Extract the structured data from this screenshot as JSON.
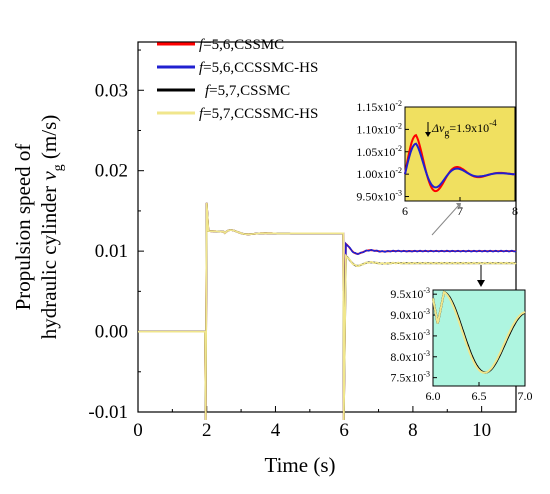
{
  "chart_data": {
    "type": "line",
    "xlabel": "Time (s)",
    "ylabel_line1": "Propulsion speed of",
    "ylabel_line2_main": "hydraulic cylinder ",
    "ylabel_line2_var": "v",
    "ylabel_line2_sub": "g",
    "ylabel_line2_unit": " (m/s)",
    "xlim": [
      0,
      11
    ],
    "ylim": [
      -0.01,
      0.036
    ],
    "x_ticks": [
      "0",
      "2",
      "4",
      "6",
      "8",
      "10"
    ],
    "y_ticks": [
      "-0.01",
      "0.00",
      "0.01",
      "0.02",
      "0.03"
    ],
    "legend": [
      {
        "var": "f",
        "label": "=5,6,CSSMC",
        "color": "#ff0000"
      },
      {
        "var": "f",
        "label": "=5,6,CCSSMC-HS",
        "color": "#2020d0"
      },
      {
        "var": "f",
        "label": "=5,7,CSSMC",
        "color": "#000000"
      },
      {
        "var": "f",
        "label": "=5,7,CCSSMC-HS",
        "color": "#f0e68c"
      }
    ],
    "series_note_levels": {
      "f56_steady": 0.01,
      "f57_steady": 0.0085,
      "stage2_steady": 0.0122,
      "initial": 0.0
    },
    "inset1": {
      "xlim": [
        6,
        8
      ],
      "ylim": [
        0.0094,
        0.0115
      ],
      "x_ticks": [
        "6",
        "7",
        "8"
      ],
      "y_ticks": [
        "1.15x10",
        "1.10x10",
        "1.05x10",
        "1.00x10",
        "9.50x10"
      ],
      "y_tick_exps": [
        "-2",
        "-2",
        "-2",
        "-2",
        "-3"
      ],
      "annotation_prefix": "Δv",
      "annotation_sub": "g",
      "annotation_value": "=1.9x10",
      "annotation_exp": "-4",
      "background": "#f0e060"
    },
    "inset2": {
      "xlim": [
        6.0,
        7.0
      ],
      "ylim": [
        0.0073,
        0.0096
      ],
      "x_ticks": [
        "6.0",
        "6.5",
        "7.0"
      ],
      "y_ticks": [
        "9.5x10",
        "9.0x10",
        "8.5x10",
        "8.0x10",
        "7.5x10"
      ],
      "y_tick_exp": "-3",
      "background": "#aef5e0"
    }
  }
}
